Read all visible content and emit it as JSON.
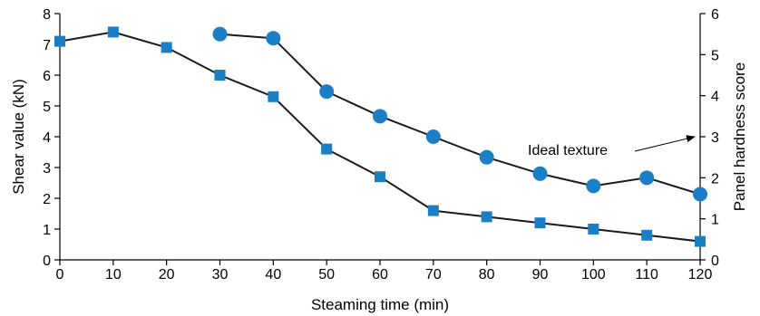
{
  "chart_data": {
    "type": "line",
    "xlabel": "Steaming time (min)",
    "ylabel_left": "Shear value (kN)",
    "ylabel_right": "Panel hardness score",
    "xlim": [
      0,
      120
    ],
    "ylim_left": [
      0,
      8
    ],
    "ylim_right": [
      0,
      6
    ],
    "x_ticks": [
      0,
      10,
      20,
      30,
      40,
      50,
      60,
      70,
      80,
      90,
      100,
      110,
      120
    ],
    "y_left_ticks": [
      0,
      1,
      2,
      3,
      4,
      5,
      6,
      7,
      8
    ],
    "y_right_ticks": [
      0,
      1,
      2,
      3,
      4,
      5,
      6
    ],
    "grid": false,
    "legend": "none",
    "color": "#1a7fc4",
    "series": [
      {
        "axis": "left",
        "marker": "square",
        "x": [
          0,
          10,
          20,
          30,
          40,
          50,
          60,
          70,
          80,
          90,
          100,
          110,
          120
        ],
        "values": [
          7.1,
          7.4,
          6.9,
          6.0,
          5.3,
          3.6,
          2.7,
          1.6,
          1.4,
          1.2,
          1.0,
          0.8,
          0.6
        ]
      },
      {
        "axis": "right",
        "marker": "circle",
        "x": [
          30,
          40,
          50,
          60,
          70,
          80,
          90,
          100,
          110,
          120
        ],
        "values": [
          5.5,
          5.4,
          4.1,
          3.5,
          3.0,
          2.5,
          2.1,
          1.8,
          2.0,
          1.6
        ]
      }
    ],
    "annotations": [
      {
        "text": "Ideal texture",
        "axis": "right",
        "x": 120,
        "y": 3.0
      }
    ]
  }
}
